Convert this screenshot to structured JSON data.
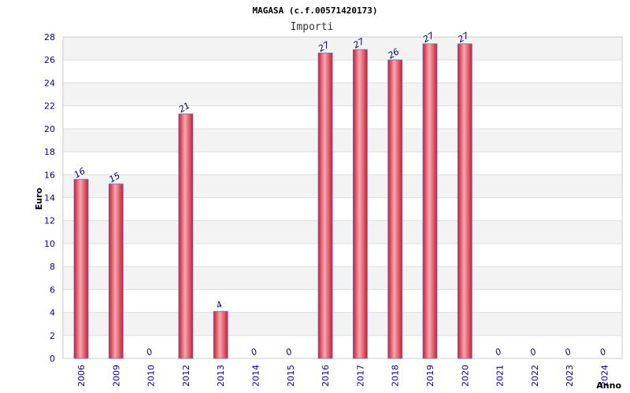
{
  "chart_data": {
    "type": "bar",
    "title": "MAGASA (c.f.00571420173)",
    "subtitle": "Importi",
    "xlabel": "Anno",
    "ylabel": "Euro",
    "ylim": [
      0,
      28
    ],
    "yticks": [
      0,
      2,
      4,
      6,
      8,
      10,
      12,
      14,
      16,
      18,
      20,
      22,
      24,
      26,
      28
    ],
    "grid": true,
    "categories": [
      "2006",
      "2009",
      "2010",
      "2012",
      "2013",
      "2014",
      "2015",
      "2016",
      "2017",
      "2018",
      "2019",
      "2020",
      "2021",
      "2022",
      "2023",
      "2024"
    ],
    "values": [
      15.6,
      15.2,
      0,
      21.3,
      4.1,
      0,
      0,
      26.6,
      26.9,
      26.0,
      27.4,
      27.4,
      0,
      0,
      0,
      0
    ],
    "data_labels": [
      "16",
      "15",
      "0",
      "21",
      "4",
      "0",
      "0",
      "27",
      "27",
      "26",
      "27",
      "27",
      "0",
      "0",
      "0",
      "0"
    ],
    "colors": {
      "bar": "#e03040",
      "bar_highlight": "#f4a0a8",
      "bar_border": "#6a6ad0",
      "tick_text": "#0000aa",
      "label_text": "#000088",
      "grid_band": "#f3f3f3",
      "grid_line": "#dddddd"
    }
  }
}
